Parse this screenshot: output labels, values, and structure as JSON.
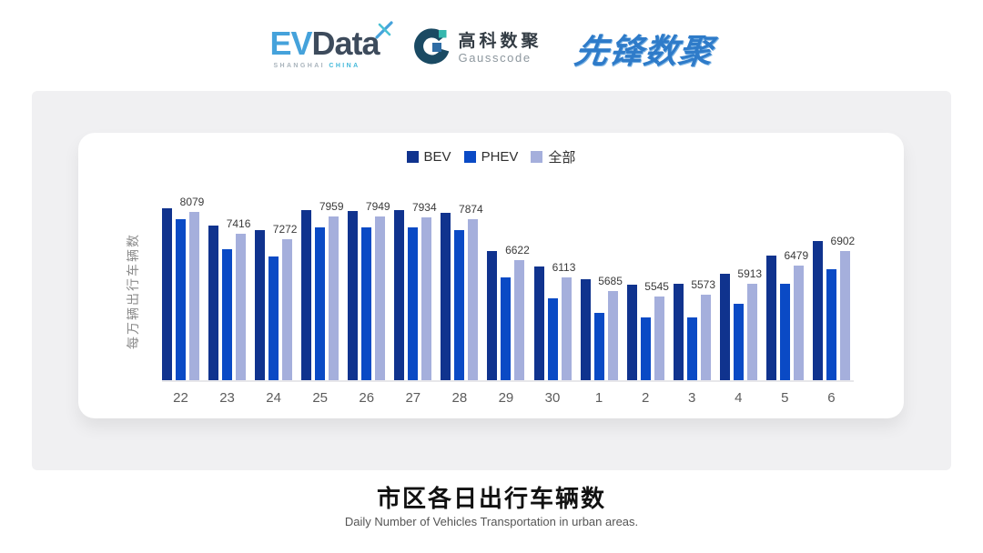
{
  "header": {
    "evdata": {
      "ev": "EV",
      "data": "Data",
      "sub_left": "SHANGHAI",
      "sub_right": "CHINA"
    },
    "gausscode": {
      "name_cn": "高科数聚",
      "name_en": "Gausscode"
    },
    "pioneer": {
      "wordmark": "先锋数聚"
    }
  },
  "chart_data": {
    "type": "bar",
    "title": "市区各日出行车辆数",
    "subtitle": "Daily Number of Vehicles Transportation in urban areas.",
    "ylabel": "每万辆出行车辆数",
    "xlabel": "",
    "categories": [
      "22",
      "23",
      "24",
      "25",
      "26",
      "27",
      "28",
      "29",
      "30",
      "1",
      "2",
      "3",
      "4",
      "5",
      "6"
    ],
    "series": [
      {
        "name": "BEV",
        "color": "#10338e",
        "values": [
          8210,
          7670,
          7530,
          8150,
          8130,
          8140,
          8050,
          6920,
          6440,
          6050,
          5890,
          5920,
          6210,
          6770,
          7210
        ]
      },
      {
        "name": "PHEV",
        "color": "#0a4ac5",
        "values": [
          7860,
          6960,
          6740,
          7630,
          7620,
          7630,
          7550,
          6100,
          5490,
          5030,
          4890,
          4890,
          5320,
          5910,
          6350
        ]
      },
      {
        "name": "全部",
        "color": "#a5afdc",
        "values": [
          8079,
          7416,
          7272,
          7959,
          7949,
          7934,
          7874,
          6622,
          6113,
          5685,
          5545,
          5573,
          5913,
          6479,
          6902
        ]
      }
    ],
    "data_labels": [
      8079,
      7416,
      7272,
      7959,
      7949,
      7934,
      7874,
      6622,
      6113,
      5685,
      5545,
      5573,
      5913,
      6479,
      6902
    ],
    "data_label_series": "全部",
    "ylim": [
      3000,
      8500
    ],
    "grid": false,
    "legend_position": "top"
  },
  "colors": {
    "section_bg": "#f0f0f2",
    "card_bg": "#ffffff",
    "axis_line": "#e7e7ea",
    "brand_blue": "#2e7bc9",
    "evdata_blue": "#45a2db",
    "evdata_dark": "#3d4b5c",
    "gausscode_dark": "#1a4a63",
    "gausscode_teal": "#35b7ae"
  }
}
